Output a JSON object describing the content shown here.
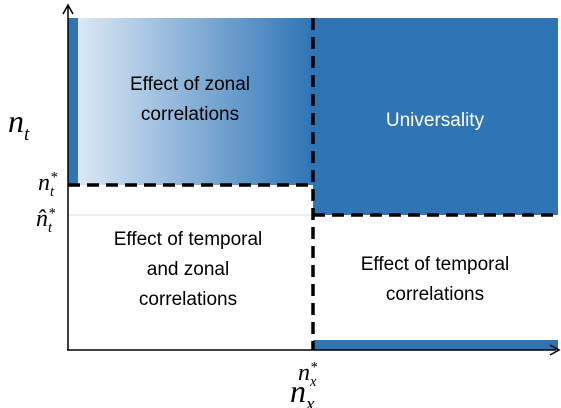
{
  "axes": {
    "y_label": {
      "base": "n",
      "sub": "t"
    },
    "x_label": {
      "base": "n",
      "sub": "x"
    },
    "nt_star": {
      "base": "n",
      "sub": "t",
      "sup": "*"
    },
    "nt_hat_star": {
      "base": "n̂",
      "sub": "t",
      "sup": "*"
    },
    "nx_star": {
      "base": "n",
      "sub": "x",
      "sup": "*"
    }
  },
  "regions": {
    "zonal": [
      "Effect of zonal",
      "correlations"
    ],
    "universality": [
      "Universality"
    ],
    "temporal_zonal": [
      "Effect of temporal",
      "and zonal",
      "correlations"
    ],
    "temporal": [
      "Effect of temporal",
      "correlations"
    ]
  }
}
